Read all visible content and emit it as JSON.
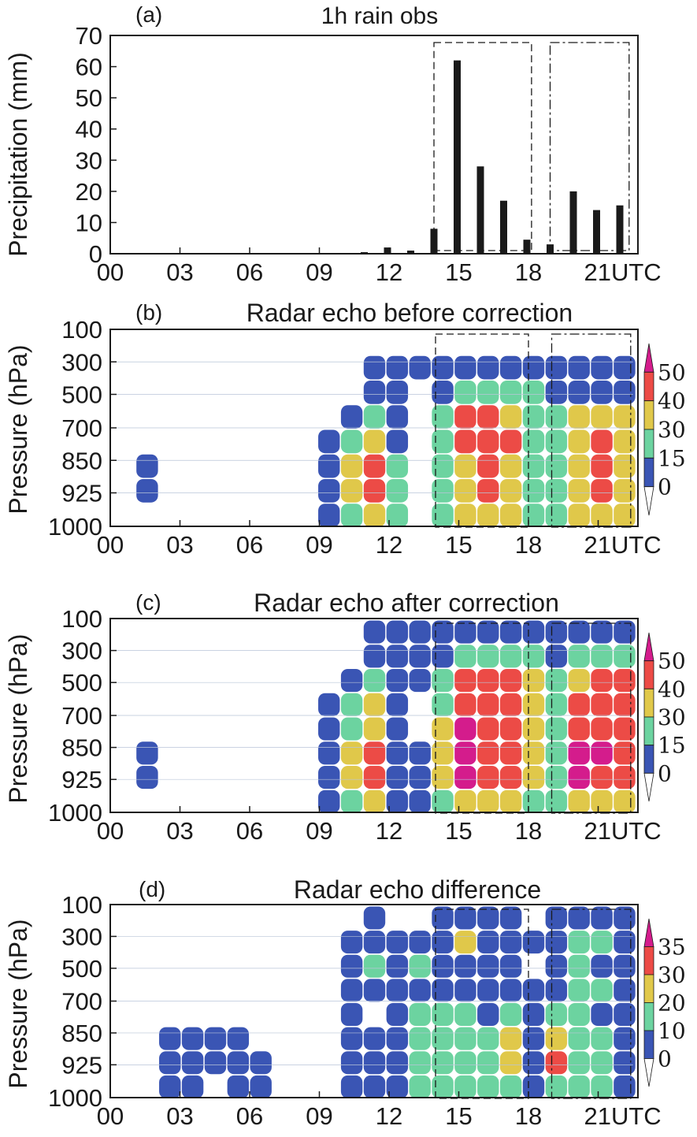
{
  "chart_data": [
    {
      "id": "a",
      "type": "bar",
      "panel_label": "(a)",
      "title": "1h rain obs",
      "ylabel": "Precipitation (mm)",
      "xlabel": "",
      "x_unit": "UTC",
      "x_ticks": [
        "00",
        "03",
        "06",
        "09",
        "12",
        "15",
        "18",
        "21"
      ],
      "y_ticks": [
        "0",
        "10",
        "20",
        "30",
        "40",
        "50",
        "60",
        "70"
      ],
      "ylim": [
        0,
        70
      ],
      "xlim_hours": [
        0,
        22.5
      ],
      "bar_color": "#1a1a1a",
      "bars": [
        {
          "hour": 11,
          "value": 0.5
        },
        {
          "hour": 12,
          "value": 2
        },
        {
          "hour": 13,
          "value": 1
        },
        {
          "hour": 14,
          "value": 8
        },
        {
          "hour": 15,
          "value": 62
        },
        {
          "hour": 16,
          "value": 28
        },
        {
          "hour": 17,
          "value": 17
        },
        {
          "hour": 18,
          "value": 4.5
        },
        {
          "hour": 19,
          "value": 3
        },
        {
          "hour": 20,
          "value": 20
        },
        {
          "hour": 21,
          "value": 14
        },
        {
          "hour": 22,
          "value": 15.5
        }
      ],
      "boxes": [
        {
          "from_hour": 14,
          "to_hour": 18.2,
          "style": "dashed"
        },
        {
          "from_hour": 19,
          "to_hour": 22.4,
          "style": "dashdot"
        }
      ]
    },
    {
      "id": "b",
      "type": "heatmap",
      "panel_label": "(b)",
      "title": "Radar echo before correction",
      "ylabel": "Pressure (hPa)",
      "x_ticks": [
        "00",
        "03",
        "06",
        "09",
        "12",
        "15",
        "18",
        "21"
      ],
      "x_unit": "UTC",
      "y_ticks": [
        "100",
        "300",
        "500",
        "700",
        "850",
        "925",
        "1000"
      ],
      "colorbar_levels": [
        "0",
        "15",
        "30",
        "40",
        "50"
      ],
      "grid": "hours 0-22 by pressure levels 100-1000 hPa",
      "values": [
        [
          0,
          0,
          0,
          0,
          0,
          0,
          0,
          0,
          0,
          0,
          0,
          0,
          0,
          0,
          0,
          0,
          0,
          0,
          0,
          0,
          0,
          0,
          0
        ],
        [
          0,
          0,
          0,
          0,
          0,
          0,
          0,
          0,
          0,
          0,
          0,
          5,
          5,
          5,
          5,
          5,
          5,
          5,
          5,
          5,
          5,
          5,
          5
        ],
        [
          0,
          0,
          0,
          0,
          0,
          0,
          0,
          0,
          0,
          0,
          0,
          5,
          5,
          0,
          5,
          20,
          20,
          20,
          15,
          5,
          5,
          5,
          5
        ],
        [
          0,
          0,
          0,
          0,
          0,
          0,
          0,
          0,
          0,
          0,
          5,
          20,
          5,
          0,
          20,
          48,
          45,
          38,
          20,
          15,
          30,
          35,
          30
        ],
        [
          0,
          0,
          0,
          0,
          0,
          0,
          0,
          0,
          0,
          5,
          20,
          35,
          5,
          0,
          20,
          45,
          42,
          40,
          20,
          15,
          35,
          42,
          32
        ],
        [
          0,
          5,
          0,
          0,
          0,
          0,
          0,
          0,
          0,
          5,
          30,
          42,
          20,
          0,
          20,
          35,
          42,
          32,
          20,
          15,
          35,
          42,
          35
        ],
        [
          0,
          5,
          0,
          0,
          0,
          0,
          0,
          0,
          0,
          5,
          32,
          45,
          20,
          0,
          20,
          32,
          42,
          32,
          20,
          15,
          32,
          42,
          35
        ],
        [
          0,
          0,
          0,
          0,
          0,
          0,
          0,
          0,
          0,
          5,
          20,
          35,
          20,
          0,
          20,
          30,
          35,
          30,
          20,
          15,
          30,
          35,
          30
        ]
      ],
      "boxes": [
        {
          "from_hour": 14,
          "to_hour": 18,
          "style": "dashed"
        },
        {
          "from_hour": 19,
          "to_hour": 22.4,
          "style": "dashdot"
        }
      ]
    },
    {
      "id": "c",
      "type": "heatmap",
      "panel_label": "(c)",
      "title": "Radar echo after correction",
      "ylabel": "Pressure (hPa)",
      "x_ticks": [
        "00",
        "03",
        "06",
        "09",
        "12",
        "15",
        "18",
        "21"
      ],
      "x_unit": "UTC",
      "y_ticks": [
        "100",
        "300",
        "500",
        "700",
        "850",
        "925",
        "1000"
      ],
      "colorbar_levels": [
        "0",
        "15",
        "30",
        "40",
        "50"
      ],
      "grid": "hours 0-22 by pressure levels 100-1000 hPa",
      "values": [
        [
          0,
          0,
          0,
          0,
          0,
          0,
          0,
          0,
          0,
          0,
          0,
          5,
          5,
          5,
          5,
          5,
          5,
          5,
          5,
          5,
          5,
          5,
          5
        ],
        [
          0,
          0,
          0,
          0,
          0,
          0,
          0,
          0,
          0,
          0,
          0,
          5,
          5,
          5,
          5,
          20,
          20,
          20,
          15,
          5,
          15,
          15,
          15
        ],
        [
          0,
          0,
          0,
          0,
          0,
          0,
          0,
          0,
          0,
          0,
          5,
          20,
          5,
          5,
          20,
          48,
          45,
          42,
          32,
          15,
          38,
          42,
          42
        ],
        [
          0,
          0,
          0,
          0,
          0,
          0,
          0,
          0,
          0,
          5,
          20,
          32,
          5,
          0,
          20,
          48,
          45,
          45,
          35,
          20,
          42,
          45,
          45
        ],
        [
          0,
          0,
          0,
          0,
          0,
          0,
          0,
          0,
          0,
          5,
          20,
          35,
          5,
          0,
          32,
          52,
          48,
          45,
          35,
          20,
          42,
          45,
          45
        ],
        [
          0,
          5,
          0,
          0,
          0,
          0,
          0,
          0,
          0,
          5,
          32,
          42,
          5,
          5,
          32,
          52,
          45,
          42,
          32,
          20,
          52,
          52,
          45
        ],
        [
          0,
          5,
          0,
          0,
          0,
          0,
          0,
          0,
          0,
          5,
          32,
          42,
          5,
          5,
          32,
          52,
          45,
          42,
          32,
          20,
          52,
          48,
          45
        ],
        [
          0,
          0,
          0,
          0,
          0,
          0,
          0,
          0,
          0,
          5,
          20,
          32,
          5,
          5,
          20,
          35,
          35,
          32,
          20,
          15,
          35,
          35,
          32
        ]
      ],
      "boxes": [
        {
          "from_hour": 14,
          "to_hour": 18,
          "style": "dashed"
        },
        {
          "from_hour": 19,
          "to_hour": 22.4,
          "style": "dashdot"
        }
      ]
    },
    {
      "id": "d",
      "type": "heatmap",
      "panel_label": "(d)",
      "title": "Radar echo difference",
      "ylabel": "Pressure (hPa)",
      "x_ticks": [
        "00",
        "03",
        "06",
        "09",
        "12",
        "15",
        "18",
        "21"
      ],
      "x_unit": "UTC",
      "y_ticks": [
        "100",
        "300",
        "500",
        "700",
        "850",
        "925",
        "1000"
      ],
      "colorbar_levels": [
        "0",
        "10",
        "20",
        "30",
        "35"
      ],
      "grid": "hours 0-22 by pressure levels 100-1000 hPa",
      "values": [
        [
          0,
          0,
          0,
          0,
          0,
          0,
          0,
          0,
          0,
          0,
          0,
          5,
          0,
          0,
          5,
          5,
          5,
          5,
          0,
          5,
          5,
          5,
          5
        ],
        [
          0,
          0,
          0,
          0,
          0,
          0,
          0,
          0,
          0,
          0,
          5,
          5,
          5,
          5,
          5,
          22,
          5,
          5,
          5,
          5,
          15,
          15,
          5
        ],
        [
          0,
          0,
          0,
          0,
          0,
          0,
          0,
          0,
          0,
          0,
          5,
          15,
          5,
          15,
          5,
          5,
          5,
          5,
          0,
          5,
          15,
          5,
          5
        ],
        [
          0,
          0,
          0,
          0,
          0,
          0,
          0,
          0,
          0,
          0,
          5,
          5,
          5,
          5,
          5,
          5,
          5,
          5,
          5,
          5,
          15,
          15,
          5
        ],
        [
          0,
          0,
          0,
          0,
          0,
          0,
          0,
          0,
          0,
          0,
          5,
          0,
          5,
          15,
          15,
          15,
          5,
          15,
          5,
          15,
          15,
          5,
          5
        ],
        [
          0,
          0,
          5,
          5,
          5,
          5,
          0,
          0,
          0,
          0,
          5,
          5,
          5,
          15,
          15,
          15,
          15,
          22,
          5,
          22,
          15,
          15,
          5
        ],
        [
          0,
          0,
          5,
          5,
          5,
          5,
          5,
          0,
          0,
          0,
          5,
          5,
          5,
          15,
          15,
          15,
          15,
          22,
          5,
          32,
          15,
          15,
          5
        ],
        [
          0,
          0,
          5,
          5,
          0,
          5,
          5,
          0,
          0,
          0,
          5,
          5,
          5,
          15,
          15,
          15,
          15,
          15,
          5,
          15,
          15,
          15,
          5
        ]
      ],
      "boxes": [
        {
          "from_hour": 14,
          "to_hour": 18,
          "style": "dashed"
        },
        {
          "from_hour": 19,
          "to_hour": 22.4,
          "style": "dashdot"
        }
      ]
    }
  ],
  "colors": {
    "level_0": "#ffffff",
    "level_1": "#3a55b4",
    "level_2": "#6cd3a0",
    "level_3": "#e0c84a",
    "level_4": "#ec4b46",
    "level_5": "#d41c8c",
    "axis": "#1a1a1a",
    "gridline": "#b8c4d8"
  }
}
